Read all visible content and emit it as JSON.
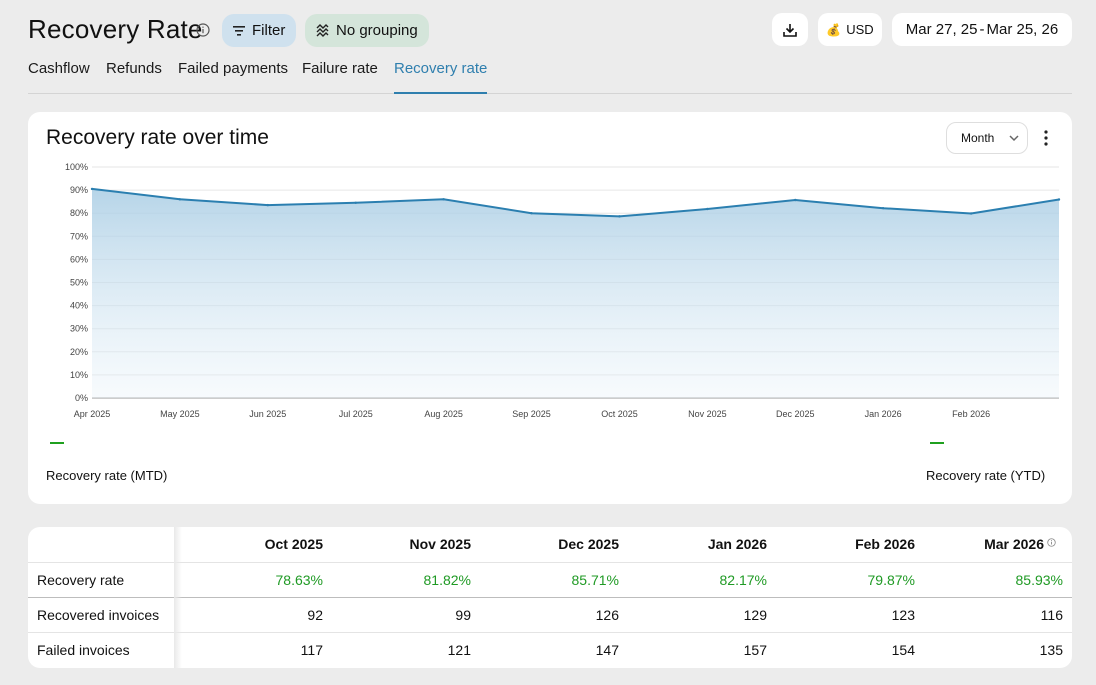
{
  "header": {
    "title": "Recovery Rate",
    "filter_label": "Filter",
    "grouping_label": "No grouping",
    "currency": "USD",
    "date_start": "Mar 27, 25",
    "date_sep": "-",
    "date_end": "Mar 25, 26"
  },
  "tabs": [
    {
      "label": "Cashflow"
    },
    {
      "label": "Refunds"
    },
    {
      "label": "Failed payments"
    },
    {
      "label": "Failure rate"
    },
    {
      "label": "Recovery rate"
    }
  ],
  "chart_card": {
    "title": "Recovery rate over time",
    "interval_select": "Month",
    "legend": [
      "Recovery rate (MTD)",
      "Recovery rate (YTD)"
    ]
  },
  "colors": {
    "accent": "#2f7fae",
    "line": "#2b7fb0",
    "legend_swatch": "#1fa01f",
    "positive": "#1f9a24"
  },
  "icons": {
    "info": "info-icon",
    "filter": "filter-icon",
    "grouping": "grouping-icon",
    "download": "download-icon",
    "currency": "money-bag-icon",
    "select": "chevron-down-icon",
    "more": "more-vertical-icon"
  },
  "chart_data": {
    "type": "area",
    "title": "Recovery rate over time",
    "xlabel": "",
    "ylabel": "",
    "ylim": [
      0,
      100
    ],
    "y_ticks": [
      "0%",
      "10%",
      "20%",
      "30%",
      "40%",
      "50%",
      "60%",
      "70%",
      "80%",
      "90%",
      "100%"
    ],
    "categories": [
      "Apr 2025",
      "May 2025",
      "Jun 2025",
      "Jul 2025",
      "Aug 2025",
      "Sep 2025",
      "Oct 2025",
      "Nov 2025",
      "Dec 2025",
      "Jan 2026",
      "Feb 2026",
      "Mar 2026"
    ],
    "x_tick_labels": [
      "Apr 2025",
      "May 2025",
      "Jun 2025",
      "Jul 2025",
      "Aug 2025",
      "Sep 2025",
      "Oct 2025",
      "Nov 2025",
      "Dec 2025",
      "Jan 2026",
      "Feb 2026"
    ],
    "series": [
      {
        "values": [
          90.5,
          86.0,
          83.5,
          84.5,
          86.0,
          80.0,
          78.63,
          81.82,
          85.71,
          82.17,
          79.87,
          85.93
        ]
      }
    ],
    "grid": true,
    "legend": "bottom"
  },
  "table": {
    "columns": [
      "Oct 2025",
      "Nov 2025",
      "Dec 2025",
      "Jan 2026",
      "Feb 2026",
      "Mar 2026"
    ],
    "rows": [
      {
        "label": "Recovery rate",
        "values": [
          "78.63%",
          "81.82%",
          "85.71%",
          "82.17%",
          "79.87%",
          "85.93%"
        ]
      },
      {
        "label": "Recovered invoices",
        "values": [
          "92",
          "99",
          "126",
          "129",
          "123",
          "116"
        ]
      },
      {
        "label": "Failed invoices",
        "values": [
          "117",
          "121",
          "147",
          "157",
          "154",
          "135"
        ]
      }
    ]
  }
}
